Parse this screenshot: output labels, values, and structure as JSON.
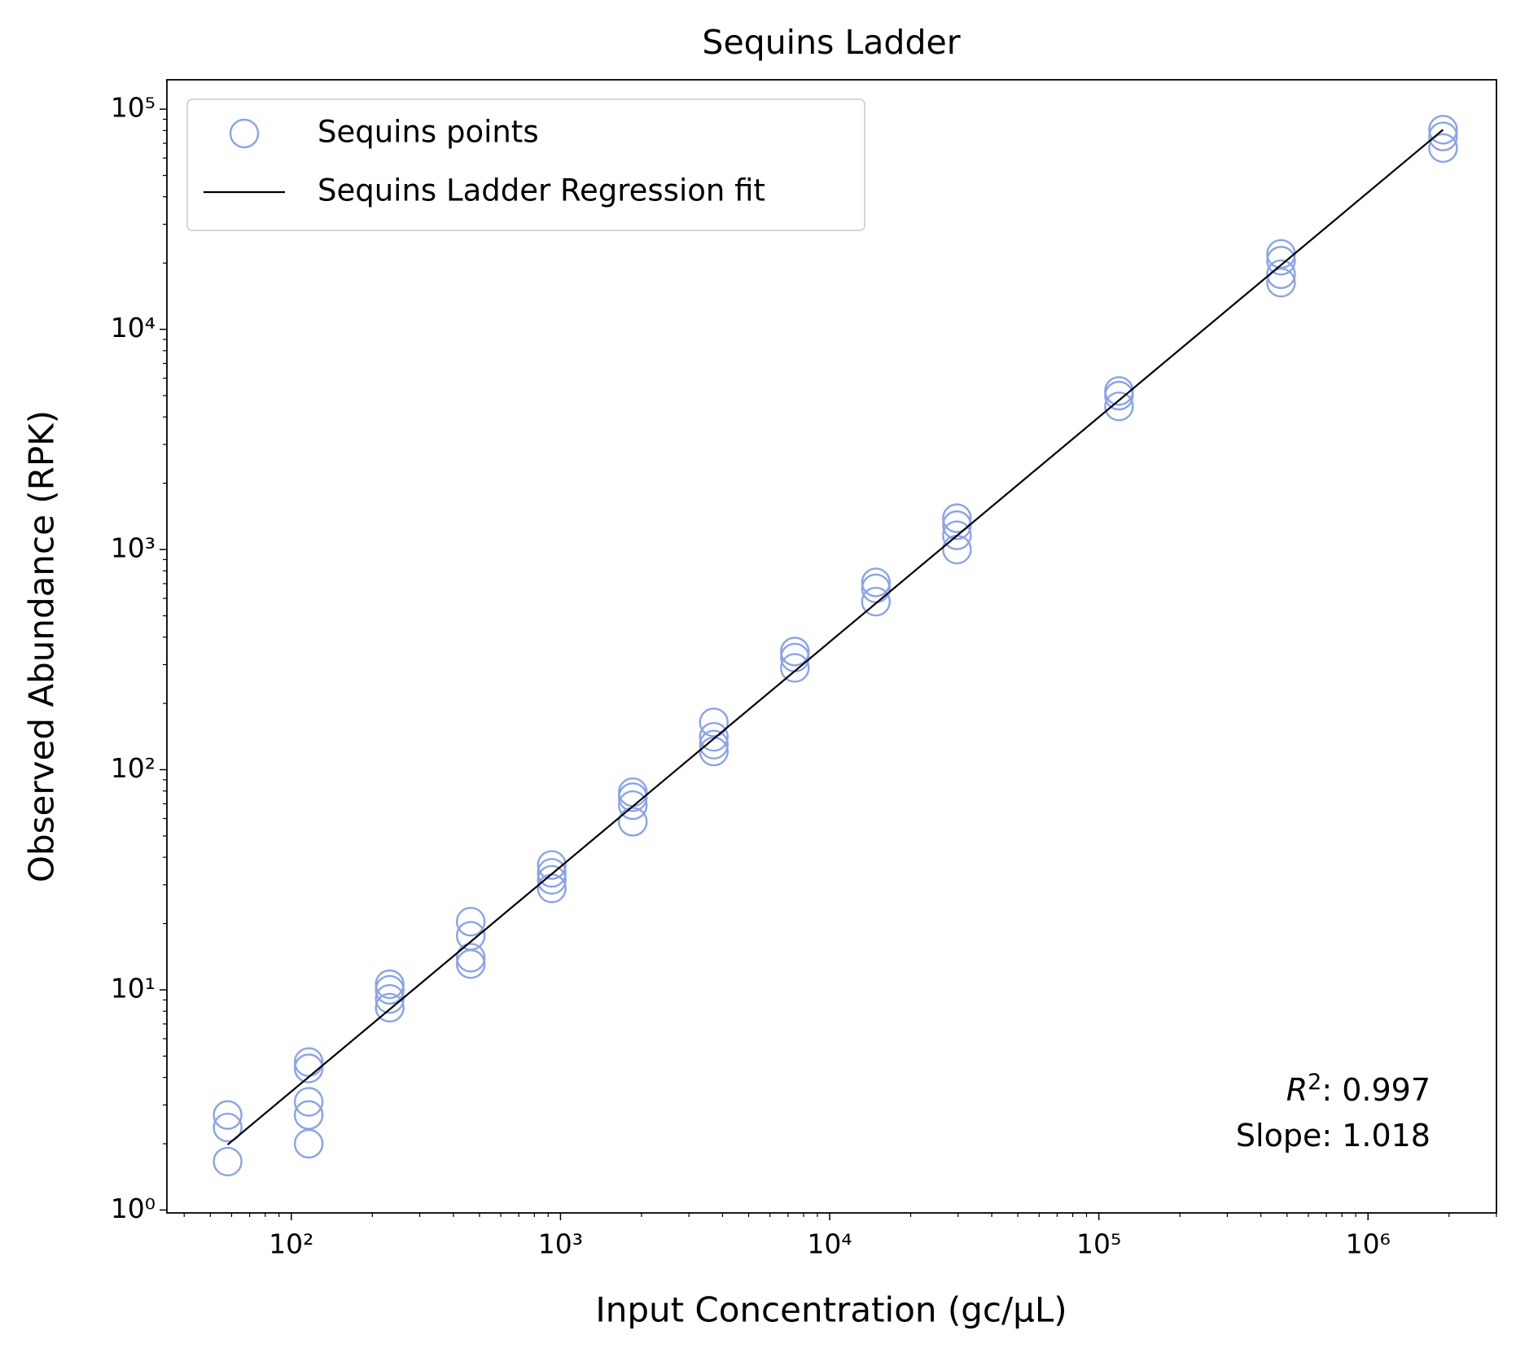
{
  "chart_data": {
    "type": "scatter",
    "title": "Sequins Ladder",
    "x_label": "Input Concentration (gc/μL)",
    "y_label": "Observed Abundance (RPK)",
    "x_log": true,
    "y_log": true,
    "minor_ticks": true,
    "grid": false,
    "legend_position": "upper left",
    "xlim": [
      34.5,
      3000000
    ],
    "ylim": [
      0.97,
      136000
    ],
    "xticks": [
      {
        "value": 100,
        "label": "10²"
      },
      {
        "value": 1000,
        "label": "10³"
      },
      {
        "value": 10000,
        "label": "10⁴"
      },
      {
        "value": 100000,
        "label": "10⁵"
      },
      {
        "value": 1000000,
        "label": "10⁶"
      }
    ],
    "yticks": [
      {
        "value": 1,
        "label": "10⁰"
      },
      {
        "value": 10,
        "label": "10¹"
      },
      {
        "value": 100,
        "label": "10²"
      },
      {
        "value": 1000,
        "label": "10³"
      },
      {
        "value": 10000,
        "label": "10⁴"
      },
      {
        "value": 100000,
        "label": "10⁵"
      }
    ],
    "series": [
      {
        "name": "Sequins points",
        "kind": "scatter",
        "color": "#8aa3e8",
        "x": [
          58,
          58,
          58,
          116,
          116,
          116,
          116,
          116,
          232,
          232,
          232,
          232,
          464,
          464,
          464,
          464,
          928,
          928,
          928,
          928,
          1856,
          1856,
          1856,
          1856,
          3712,
          3712,
          3712,
          3712,
          7424,
          7424,
          7424,
          14848,
          14848,
          14848,
          29696,
          29696,
          29696,
          29696,
          118784,
          118784,
          118784,
          475136,
          475136,
          475136,
          475136,
          1900000,
          1900000,
          1900000
        ],
        "values": [
          2.7,
          2.37,
          1.66,
          4.7,
          4.4,
          3.1,
          2.7,
          2.0,
          10.6,
          10,
          9.1,
          8.3,
          20.4,
          17.6,
          14.0,
          13.1,
          36.9,
          34,
          31.6,
          28.9,
          79,
          75,
          69,
          58,
          164,
          141,
          130,
          121,
          344,
          323,
          290,
          709,
          666,
          580,
          1387,
          1290,
          1160,
          1000,
          5250,
          5000,
          4470,
          22000,
          20500,
          17800,
          16300,
          80700,
          75200,
          66600
        ]
      },
      {
        "name": "Sequins Ladder Regression fit",
        "kind": "line",
        "color": "#000000",
        "x": [
          58,
          1900000
        ],
        "values": [
          1.98,
          80700
        ]
      }
    ],
    "annotations": [
      {
        "symbol": "R",
        "exponent": "2",
        "text": ": 0.997"
      },
      {
        "text": "Slope: 1.018"
      }
    ]
  }
}
